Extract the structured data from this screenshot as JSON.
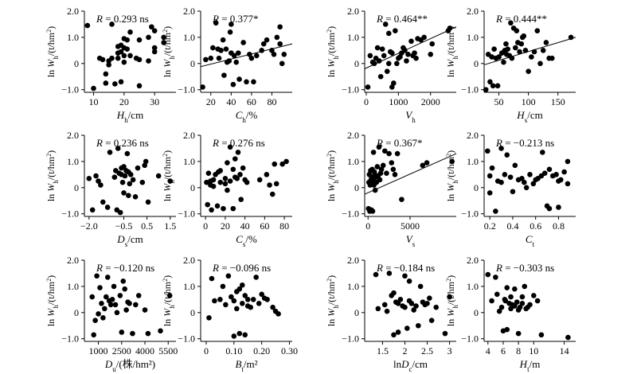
{
  "chart_data": [
    {
      "type": "scatter",
      "xlabel_main": "H",
      "xlabel_sub": "h",
      "xlabel_unit": "/cm",
      "xticks": [
        10,
        20,
        30
      ],
      "xlim": [
        7,
        37
      ],
      "stat_label": "R = 0.293 ns",
      "x": [
        8,
        10,
        12,
        13,
        14,
        14,
        15,
        15,
        16,
        16,
        17,
        18,
        18,
        18,
        19,
        19,
        19,
        20,
        20,
        20,
        20,
        21,
        21,
        22,
        22,
        24,
        25,
        25,
        25,
        28,
        28,
        29,
        30,
        30,
        30,
        33,
        33
      ],
      "y": [
        1.45,
        -0.95,
        0.2,
        0.15,
        -0.4,
        -0.75,
        0.1,
        -0.05,
        1.5,
        0.2,
        -0.78,
        0.65,
        0.4,
        0.2,
        -0.7,
        0.45,
        0.7,
        0.05,
        0.95,
        0.3,
        0.6,
        0.9,
        0.55,
        1.2,
        0.3,
        0.2,
        -0.85,
        0.15,
        0.9,
        0.1,
        1.0,
        1.4,
        0.6,
        0.45,
        1.25,
        0.8,
        1.0
      ]
    },
    {
      "type": "scatter",
      "xlabel_main": "C",
      "xlabel_sub": "h",
      "xlabel_unit": "/%",
      "xticks": [
        20,
        40,
        60,
        80
      ],
      "xlim": [
        10,
        100
      ],
      "stat_label": "R = 0.377*",
      "trendline": [
        [
          10,
          -0.12
        ],
        [
          100,
          0.75
        ]
      ],
      "x": [
        12,
        15,
        20,
        22,
        25,
        27,
        28,
        30,
        32,
        33,
        35,
        36,
        38,
        39,
        40,
        40,
        42,
        43,
        45,
        47,
        48,
        52,
        55,
        58,
        60,
        62,
        65,
        70,
        72,
        75,
        80,
        82,
        85,
        88,
        88,
        90,
        92
      ],
      "y": [
        -0.9,
        0.15,
        0.2,
        0.6,
        1.55,
        0.55,
        0.2,
        0.5,
        0.9,
        -0.45,
        0.55,
        0.05,
        0.1,
        1.2,
        0.4,
        1.5,
        -0.8,
        0.3,
        0.05,
        0.4,
        -0.6,
        0.8,
        -0.7,
        0.35,
        0.2,
        -0.7,
        0.3,
        0.5,
        0.75,
        0.9,
        0.5,
        0.35,
        1.0,
        1.4,
        0.75,
        0.0,
        0.35
      ]
    },
    {
      "type": "scatter",
      "xlabel_main": "V",
      "xlabel_sub": "h",
      "xlabel_unit": "",
      "xticks": [
        0,
        1000,
        2000
      ],
      "xlim": [
        -50,
        2800
      ],
      "stat_label": "R = 0.464**",
      "trendline": [
        [
          -50,
          -0.2
        ],
        [
          2800,
          1.4
        ]
      ],
      "x": [
        50,
        120,
        200,
        250,
        300,
        350,
        400,
        450,
        500,
        550,
        600,
        650,
        700,
        700,
        750,
        800,
        800,
        850,
        900,
        950,
        1000,
        1050,
        1100,
        1150,
        1200,
        1250,
        1300,
        1400,
        1450,
        1500,
        1550,
        1600,
        1700,
        1800,
        2000,
        2050,
        2550,
        2600
      ],
      "y": [
        -0.9,
        0.3,
        0.05,
        0.0,
        0.2,
        0.6,
        0.1,
        -0.5,
        0.55,
        0.3,
        1.5,
        -0.3,
        0.0,
        1.15,
        0.45,
        -0.9,
        0.4,
        -0.75,
        1.25,
        0.0,
        0.2,
        0.25,
        0.4,
        0.6,
        0.5,
        0.1,
        0.35,
        0.85,
        0.3,
        0.4,
        0.2,
        0.95,
        0.9,
        1.0,
        0.35,
        0.75,
        1.25,
        1.35
      ]
    },
    {
      "type": "scatter",
      "xlabel_main": "H",
      "xlabel_sub": "s",
      "xlabel_unit": "/cm",
      "xticks": [
        50,
        100,
        150
      ],
      "xlim": [
        25,
        180
      ],
      "stat_label": "R = 0.444**",
      "trendline": [
        [
          25,
          -0.05
        ],
        [
          180,
          1.0
        ]
      ],
      "x": [
        28,
        32,
        35,
        38,
        40,
        42,
        45,
        48,
        50,
        55,
        58,
        60,
        62,
        63,
        65,
        68,
        70,
        72,
        75,
        78,
        80,
        82,
        85,
        88,
        90,
        92,
        95,
        100,
        105,
        110,
        115,
        120,
        125,
        130,
        135,
        140,
        172
      ],
      "y": [
        -1.0,
        0.35,
        -0.7,
        0.25,
        -0.85,
        0.55,
        0.2,
        -0.85,
        0.25,
        0.4,
        0.05,
        0.5,
        0.75,
        0.35,
        0.55,
        0.3,
        1.55,
        0.2,
        1.35,
        0.6,
        1.25,
        0.8,
        0.45,
        0.75,
        1.0,
        1.05,
        0.5,
        -0.3,
        0.25,
        0.45,
        1.25,
        0.0,
        0.5,
        0.8,
        0.2,
        0.2,
        1.0
      ]
    },
    {
      "type": "scatter",
      "xlabel_main": "D",
      "xlabel_sub": "s",
      "xlabel_unit": "/cm",
      "xticks": [
        -2.0,
        -0.5,
        0.5,
        1.5
      ],
      "xtick_labels": [
        "−2.0",
        "−0.5",
        "0.5",
        "1.5"
      ],
      "xlim": [
        -2.2,
        1.75
      ],
      "stat_label": "R = 0.236 ns",
      "x": [
        -2.0,
        -1.85,
        -1.7,
        -1.6,
        -1.5,
        -1.4,
        -1.2,
        -1.1,
        -0.9,
        -0.85,
        -0.8,
        -0.75,
        -0.7,
        -0.65,
        -0.6,
        -0.6,
        -0.55,
        -0.5,
        -0.5,
        -0.45,
        -0.4,
        -0.35,
        -0.3,
        -0.3,
        -0.25,
        -0.2,
        -0.1,
        0.0,
        0.1,
        0.3,
        0.4,
        0.45,
        0.55,
        1.0,
        1.5
      ],
      "y": [
        0.35,
        -0.85,
        0.45,
        0.25,
        0.1,
        -0.55,
        -0.75,
        1.35,
        0.4,
        0.65,
        -0.85,
        1.5,
        0.55,
        -0.95,
        0.75,
        0.5,
        0.2,
        0.8,
        -0.2,
        0.45,
        0.65,
        1.3,
        0.6,
        -0.3,
        0.15,
        0.5,
        0.3,
        -0.35,
        0.75,
        0.2,
        0.85,
        1.0,
        -0.55,
        0.45,
        0.25
      ]
    },
    {
      "type": "scatter",
      "xlabel_main": "C",
      "xlabel_sub": "s",
      "xlabel_unit": "/%",
      "xticks": [
        0,
        20,
        40,
        60,
        80
      ],
      "xlim": [
        -5,
        88
      ],
      "stat_label": "R = 0.276 ns",
      "x": [
        1,
        2,
        3,
        5,
        5,
        6,
        8,
        8,
        10,
        12,
        13,
        15,
        15,
        18,
        20,
        20,
        22,
        22,
        25,
        25,
        28,
        28,
        30,
        30,
        32,
        33,
        35,
        36,
        38,
        40,
        42,
        55,
        62,
        65,
        68,
        70,
        72,
        78,
        82
      ],
      "y": [
        0.2,
        -0.65,
        0.55,
        0.1,
        0.25,
        -0.85,
        0.3,
        0.05,
        0.5,
        -0.7,
        0.6,
        0.2,
        0.65,
        -0.8,
        0.35,
        0.15,
        0.95,
        -0.1,
        0.25,
        1.55,
        -0.8,
        0.7,
        0.4,
        1.1,
        0.35,
        1.35,
        0.5,
        -0.45,
        0.75,
        0.3,
        0.2,
        0.3,
        0.5,
        0.1,
        -0.25,
        0.9,
        0.15,
        0.9,
        1.0
      ]
    },
    {
      "type": "scatter",
      "xlabel_main": "V",
      "xlabel_sub": "s",
      "xlabel_unit": "",
      "xticks": [
        0,
        5000
      ],
      "xlim": [
        -400,
        10500
      ],
      "stat_label": "R = 0.367*",
      "trendline": [
        [
          -400,
          -0.25
        ],
        [
          10500,
          1.3
        ]
      ],
      "x": [
        50,
        100,
        150,
        200,
        250,
        300,
        350,
        400,
        450,
        500,
        550,
        600,
        650,
        700,
        750,
        800,
        850,
        900,
        1000,
        1100,
        1200,
        1300,
        1400,
        1500,
        1600,
        1800,
        2000,
        2200,
        2500,
        2800,
        3000,
        3200,
        3500,
        4000,
        6500,
        7000,
        10000
      ],
      "y": [
        -0.8,
        0.2,
        0.5,
        -0.9,
        0.1,
        0.65,
        0.3,
        -0.85,
        0.4,
        0.7,
        -0.9,
        0.25,
        1.35,
        0.1,
        0.6,
        0.5,
        -0.1,
        0.4,
        0.2,
        0.8,
        0.45,
        1.55,
        0.3,
        0.55,
        0.7,
        0.85,
        1.4,
        0.55,
        1.3,
        0.95,
        0.7,
        0.5,
        1.3,
        -0.45,
        0.85,
        0.95,
        1.0
      ]
    },
    {
      "type": "scatter",
      "xlabel_main": "C",
      "xlabel_sub": "t",
      "xlabel_unit": "",
      "xticks": [
        0.2,
        0.4,
        0.6,
        0.8
      ],
      "xlim": [
        0.15,
        0.95
      ],
      "stat_label": "R = −0.213 ns",
      "x": [
        0.18,
        0.2,
        0.2,
        0.22,
        0.25,
        0.27,
        0.3,
        0.3,
        0.33,
        0.35,
        0.38,
        0.4,
        0.42,
        0.45,
        0.48,
        0.5,
        0.52,
        0.55,
        0.58,
        0.6,
        0.62,
        0.65,
        0.66,
        0.68,
        0.7,
        0.72,
        0.72,
        0.75,
        0.78,
        0.8,
        0.8,
        0.82,
        0.85,
        0.88,
        0.88
      ],
      "y": [
        1.4,
        0.45,
        -0.2,
        0.75,
        -0.9,
        0.25,
        1.5,
        0.2,
        0.5,
        1.25,
        0.4,
        -0.15,
        0.85,
        0.3,
        0.35,
        0.2,
        0.0,
        0.5,
        0.15,
        0.3,
        0.35,
        0.45,
        1.35,
        0.55,
        -0.7,
        0.7,
        -0.8,
        0.45,
        0.5,
        -0.75,
        0.25,
        0.3,
        0.6,
        1.0,
        0.15
      ]
    },
    {
      "type": "scatter",
      "xlabel_main": "D",
      "xlabel_sub": "u",
      "xlabel_unit": "/(株/hm²)",
      "xticks": [
        1000,
        2500,
        4000,
        5500
      ],
      "xlim": [
        100,
        6000
      ],
      "stat_label": "R = −0.120 ns",
      "x": [
        600,
        700,
        800,
        900,
        1000,
        1100,
        1200,
        1300,
        1400,
        1500,
        1600,
        1700,
        1800,
        1900,
        2000,
        2100,
        2200,
        2400,
        2500,
        2600,
        2700,
        2800,
        2900,
        3000,
        3200,
        3400,
        3600,
        4000,
        4200,
        5000,
        5600
      ],
      "y": [
        0.6,
        -0.85,
        -0.3,
        1.4,
        -0.05,
        0.95,
        0.35,
        -0.2,
        0.15,
        0.6,
        1.35,
        0.45,
        0.3,
        0.5,
        1.0,
        0.3,
        0.0,
        0.65,
        -0.75,
        1.2,
        0.9,
        0.1,
        0.4,
        0.35,
        -0.8,
        0.3,
        0.65,
        0.1,
        -0.8,
        -0.7,
        0.65
      ]
    },
    {
      "type": "scatter",
      "xlabel_main": "B",
      "xlabel_sub": "t",
      "xlabel_unit": "/m²",
      "xticks": [
        0,
        0.1,
        0.2,
        0.3
      ],
      "xtick_labels": [
        "0",
        "0.10",
        "0.20",
        "0.30"
      ],
      "xlim": [
        -0.02,
        0.31
      ],
      "stat_label": "R = −0.096 ns",
      "x": [
        0.01,
        0.02,
        0.03,
        0.05,
        0.06,
        0.07,
        0.08,
        0.09,
        0.1,
        0.1,
        0.11,
        0.11,
        0.12,
        0.12,
        0.13,
        0.13,
        0.14,
        0.14,
        0.15,
        0.15,
        0.16,
        0.17,
        0.18,
        0.19,
        0.2,
        0.21,
        0.22,
        0.24,
        0.25,
        0.26
      ],
      "y": [
        -0.2,
        1.3,
        0.45,
        0.5,
        1.0,
        0.3,
        1.4,
        0.6,
        -0.9,
        0.45,
        0.8,
        0.15,
        -0.8,
        0.9,
        0.35,
        1.05,
        0.65,
        -0.85,
        0.25,
        0.5,
        0.2,
        0.5,
        1.35,
        0.35,
        0.7,
        0.55,
        0.5,
        0.2,
        0.05,
        -0.05
      ]
    },
    {
      "type": "scatter",
      "xlabel_main": "lnD",
      "xlabel_sub": "c",
      "xlabel_unit": "/cm",
      "xticks": [
        1.5,
        2.0,
        2.5,
        3.0
      ],
      "xlim": [
        1.1,
        3.15
      ],
      "stat_label": "R = −0.184 ns",
      "x": [
        1.35,
        1.4,
        1.55,
        1.6,
        1.65,
        1.7,
        1.75,
        1.75,
        1.8,
        1.85,
        1.85,
        1.9,
        1.95,
        2.0,
        2.0,
        2.05,
        2.1,
        2.1,
        2.15,
        2.2,
        2.25,
        2.3,
        2.35,
        2.4,
        2.45,
        2.5,
        2.55,
        2.6,
        2.7,
        2.9,
        3.0
      ],
      "y": [
        1.45,
        0.15,
        0.3,
        0.05,
        1.5,
        0.65,
        0.75,
        -0.85,
        0.4,
        0.35,
        -0.75,
        0.5,
        0.25,
        1.4,
        0.2,
        -0.6,
        1.2,
        0.45,
        0.35,
        0.1,
        0.25,
        -0.5,
        1.0,
        0.4,
        0.3,
        0.35,
        0.55,
        -0.3,
        0.2,
        -0.8,
        0.6
      ]
    },
    {
      "type": "scatter",
      "xlabel_main": "H",
      "xlabel_sub": "t",
      "xlabel_unit": "/m",
      "xticks": [
        4,
        6,
        8,
        10,
        14
      ],
      "xlim": [
        3.5,
        15.5
      ],
      "stat_label": "R = −0.303 ns",
      "x": [
        4.0,
        4.5,
        5.0,
        5.2,
        5.5,
        5.8,
        6.0,
        6.2,
        6.3,
        6.5,
        6.5,
        6.8,
        7.0,
        7.0,
        7.2,
        7.5,
        7.5,
        7.8,
        8.0,
        8.0,
        8.2,
        8.5,
        8.5,
        8.8,
        9.0,
        9.2,
        9.5,
        10.0,
        10.5,
        11.0,
        14.5
      ],
      "y": [
        1.45,
        0.45,
        1.35,
        0.7,
        0.05,
        0.2,
        -0.7,
        0.5,
        0.45,
        0.95,
        -0.65,
        0.35,
        0.15,
        0.6,
        0.3,
        0.9,
        0.25,
        0.4,
        0.1,
        -0.8,
        0.2,
        0.6,
        0.35,
        1.0,
        0.15,
        0.2,
        0.3,
        0.65,
        0.45,
        -0.85,
        -0.95
      ]
    }
  ],
  "y_axis": {
    "yticks": [
      -1.0,
      0,
      1.0,
      2.0
    ],
    "ytick_labels": [
      "−1.0",
      "0",
      "1.0",
      "2.0"
    ],
    "ylim": [
      -1.1,
      2.0
    ],
    "label_prefix": "ln ",
    "label_main": "W",
    "label_sub": "h",
    "label_unit": "/(t/hm²)"
  }
}
